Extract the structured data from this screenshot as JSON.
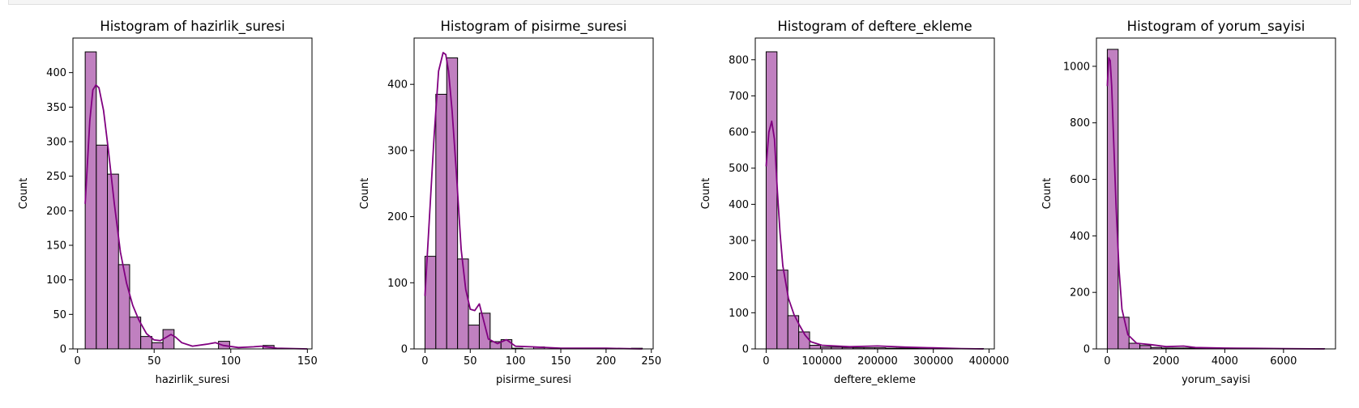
{
  "colors": {
    "bar_fill": "#c080c0",
    "bar_edge": "#000000",
    "kde_line": "#800080",
    "axis": "#000000",
    "background": "#ffffff"
  },
  "chart_data": [
    {
      "type": "bar",
      "title": "Histogram of hazirlik_suresi",
      "xlabel": "hazirlik_suresi",
      "ylabel": "Count",
      "xlim": [
        -3,
        153
      ],
      "ylim": [
        0,
        450
      ],
      "xticks": [
        0,
        50,
        100,
        150
      ],
      "yticks": [
        0,
        50,
        100,
        150,
        200,
        250,
        300,
        350,
        400
      ],
      "bins": {
        "start": 5,
        "width": 7.25,
        "counts": [
          430,
          295,
          253,
          122,
          46,
          18,
          9,
          28,
          0,
          0,
          0,
          0,
          11,
          0,
          0,
          0,
          5,
          0,
          0,
          0
        ]
      },
      "kde": {
        "x": [
          5,
          8,
          10,
          12,
          14,
          17,
          20,
          24,
          28,
          32,
          36,
          40,
          45,
          50,
          54,
          58,
          61,
          64,
          68,
          75,
          85,
          90,
          95,
          105,
          115,
          120,
          130,
          150
        ],
        "y": [
          210,
          330,
          375,
          382,
          378,
          345,
          290,
          210,
          140,
          95,
          63,
          42,
          22,
          13,
          12,
          17,
          21,
          17,
          9,
          4,
          7,
          9,
          5,
          2,
          3,
          4,
          1,
          0
        ]
      }
    },
    {
      "type": "bar",
      "title": "Histogram of pisirme_suresi",
      "xlabel": "pisirme_suresi",
      "ylabel": "Count",
      "xlim": [
        -12,
        252
      ],
      "ylim": [
        0,
        470
      ],
      "xticks": [
        0,
        50,
        100,
        150,
        200,
        250
      ],
      "yticks": [
        0,
        100,
        200,
        300,
        400
      ],
      "bins": {
        "start": 0,
        "width": 12,
        "counts": [
          140,
          385,
          440,
          136,
          36,
          54,
          11,
          14,
          1,
          0,
          3,
          0,
          0,
          0,
          0,
          0,
          0,
          0,
          0,
          1
        ]
      },
      "kde": {
        "x": [
          0,
          5,
          10,
          15,
          20,
          23,
          26,
          30,
          35,
          40,
          45,
          50,
          55,
          60,
          65,
          70,
          80,
          90,
          100,
          120,
          150,
          200,
          240
        ],
        "y": [
          80,
          200,
          320,
          420,
          448,
          445,
          420,
          360,
          260,
          150,
          90,
          60,
          58,
          68,
          42,
          15,
          8,
          14,
          4,
          3,
          1,
          1,
          0
        ]
      }
    },
    {
      "type": "bar",
      "title": "Histogram of deftere_ekleme",
      "xlabel": "deftere_ekleme",
      "ylabel": "Count",
      "xlim": [
        -19500,
        409500
      ],
      "ylim": [
        0,
        860
      ],
      "xticks": [
        0,
        100000,
        200000,
        300000,
        400000
      ],
      "yticks": [
        0,
        100,
        200,
        300,
        400,
        500,
        600,
        700,
        800
      ],
      "bins": {
        "start": 0,
        "width": 19500,
        "counts": [
          822,
          218,
          92,
          47,
          10,
          5,
          5,
          4,
          3,
          3,
          3,
          2,
          2,
          2,
          1,
          1,
          1,
          1,
          1,
          1
        ]
      },
      "kde": {
        "x": [
          0,
          5000,
          10000,
          15000,
          20000,
          25000,
          30000,
          40000,
          50000,
          60000,
          70000,
          80000,
          100000,
          150000,
          200000,
          250000,
          300000,
          350000,
          390000
        ],
        "y": [
          505,
          600,
          630,
          580,
          440,
          320,
          230,
          140,
          95,
          65,
          38,
          20,
          10,
          6,
          8,
          5,
          3,
          1,
          0
        ]
      }
    },
    {
      "type": "bar",
      "title": "Histogram of yorum_sayisi",
      "xlabel": "yorum_sayisi",
      "ylabel": "Count",
      "xlim": [
        -370,
        7770
      ],
      "ylim": [
        0,
        1100
      ],
      "xticks": [
        0,
        2000,
        4000,
        6000
      ],
      "yticks": [
        0,
        200,
        400,
        600,
        800,
        1000
      ],
      "bins": {
        "start": 0,
        "width": 370,
        "counts": [
          1060,
          112,
          20,
          12,
          5,
          3,
          3,
          3,
          2,
          1,
          1,
          1,
          1,
          0,
          0,
          0,
          0,
          0,
          0,
          1
        ]
      },
      "kde": {
        "x": [
          0,
          50,
          100,
          150,
          200,
          300,
          400,
          500,
          700,
          1000,
          1500,
          2000,
          2600,
          3000,
          4000,
          5000,
          6000,
          7400
        ],
        "y": [
          930,
          1030,
          1020,
          930,
          780,
          500,
          280,
          140,
          50,
          20,
          15,
          8,
          10,
          5,
          3,
          2,
          1,
          0
        ]
      }
    }
  ]
}
